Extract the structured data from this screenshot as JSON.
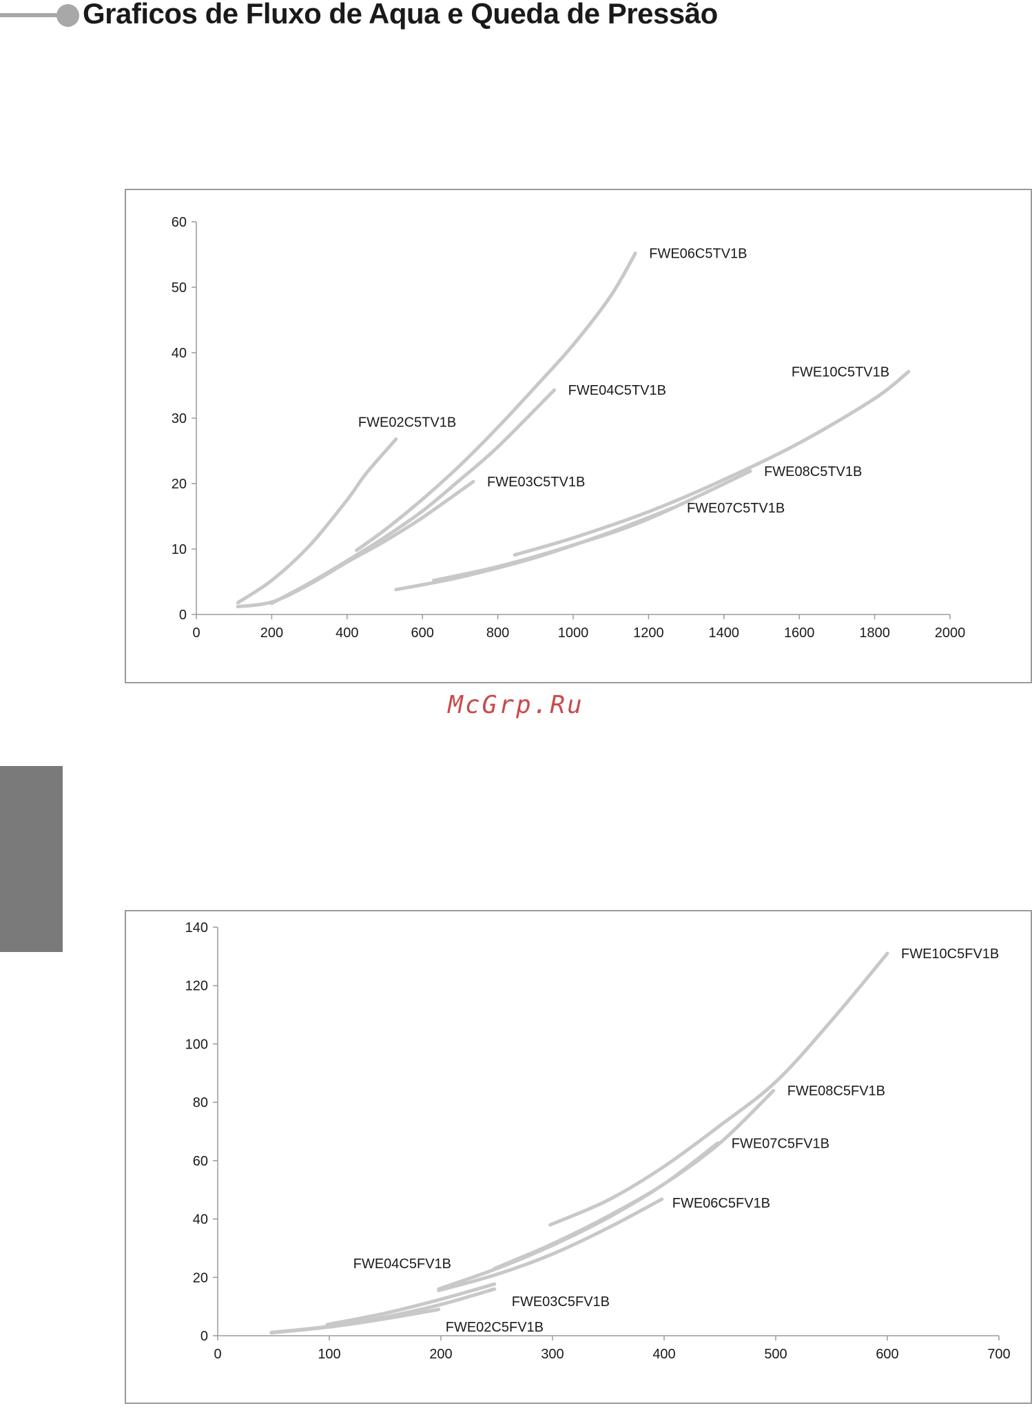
{
  "page": {
    "title": "Graficos de Fluxo de Aqua e Queda de Pressão",
    "watermark": "McGrp.Ru",
    "colors": {
      "header_accent": "#a8a8a8",
      "side_tab": "#7b7a7a",
      "curve": "#c8c8c8",
      "axis": "#9a9a9a",
      "frame": "#9a9a9a",
      "watermark": "#c94a4a"
    }
  },
  "chart_data": [
    {
      "type": "line",
      "title": "",
      "xlabel": "",
      "ylabel": "",
      "xlim": [
        0,
        2000
      ],
      "ylim": [
        0,
        60
      ],
      "xticks": [
        "0",
        "200",
        "400",
        "600",
        "800",
        "1000",
        "1200",
        "1400",
        "1600",
        "1800",
        "2000"
      ],
      "yticks": [
        "0",
        "10",
        "20",
        "30",
        "40",
        "50",
        "60"
      ],
      "grid": false,
      "legend": "labels at curve ends",
      "series": [
        {
          "name": "FWE02C5TV1B",
          "x": [
            110,
            200,
            300,
            400,
            450,
            530
          ],
          "y": [
            1.8,
            5.2,
            10.5,
            17.5,
            21.5,
            26.8
          ]
        },
        {
          "name": "FWE03C5TV1B",
          "x": [
            110,
            200,
            300,
            400,
            500,
            600,
            735
          ],
          "y": [
            1.2,
            1.9,
            4.6,
            8.0,
            11.2,
            14.8,
            20.3
          ]
        },
        {
          "name": "FWE04C5TV1B",
          "x": [
            200,
            300,
            400,
            500,
            600,
            700,
            800,
            950
          ],
          "y": [
            1.7,
            4.8,
            8.2,
            11.8,
            15.8,
            20.6,
            25.6,
            34.3
          ]
        },
        {
          "name": "FWE06C5TV1B",
          "x": [
            425,
            500,
            600,
            700,
            800,
            900,
            1000,
            1100,
            1165
          ],
          "y": [
            9.8,
            12.9,
            17.6,
            22.8,
            28.6,
            34.8,
            41.2,
            48.7,
            55.2
          ]
        },
        {
          "name": "FWE07C5TV1B",
          "x": [
            530,
            700,
            900,
            1100,
            1265
          ],
          "y": [
            3.8,
            5.7,
            8.7,
            12.6,
            16.3
          ]
        },
        {
          "name": "FWE08C5TV1B",
          "x": [
            630,
            800,
            1000,
            1200,
            1470
          ],
          "y": [
            5.2,
            7.3,
            10.6,
            14.6,
            21.9
          ]
        },
        {
          "name": "FWE10C5TV1B",
          "x": [
            845,
            1000,
            1200,
            1400,
            1600,
            1800,
            1890
          ],
          "y": [
            9.1,
            11.7,
            15.7,
            20.6,
            26.2,
            33.0,
            37.1
          ]
        }
      ]
    },
    {
      "type": "line",
      "title": "",
      "xlabel": "",
      "ylabel": "",
      "xlim": [
        0,
        700
      ],
      "ylim": [
        0,
        140
      ],
      "xticks": [
        "0",
        "100",
        "200",
        "300",
        "400",
        "500",
        "600",
        "700"
      ],
      "yticks": [
        "0",
        "20",
        "40",
        "60",
        "80",
        "100",
        "120",
        "140"
      ],
      "grid": false,
      "legend": "labels at curve ends",
      "series": [
        {
          "name": "FWE02C5FV1B",
          "x": [
            48,
            100,
            150,
            198
          ],
          "y": [
            1.0,
            3.0,
            5.8,
            9.0
          ]
        },
        {
          "name": "FWE03C5FV1B",
          "x": [
            48,
            100,
            150,
            200,
            248
          ],
          "y": [
            1.1,
            3.2,
            6.4,
            10.7,
            16.0
          ]
        },
        {
          "name": "FWE04C5FV1B",
          "x": [
            98,
            150,
            200,
            248
          ],
          "y": [
            3.8,
            7.7,
            12.5,
            17.7
          ]
        },
        {
          "name": "FWE06C5FV1B",
          "x": [
            198,
            250,
            300,
            350,
            398
          ],
          "y": [
            15.5,
            21.0,
            28.0,
            37.0,
            46.8
          ]
        },
        {
          "name": "FWE07C5FV1B",
          "x": [
            198,
            250,
            300,
            350,
            400,
            448
          ],
          "y": [
            16.0,
            23.0,
            31.0,
            40.5,
            52.0,
            66.0
          ]
        },
        {
          "name": "FWE08C5FV1B",
          "x": [
            248,
            300,
            350,
            400,
            450,
            498
          ],
          "y": [
            23.0,
            31.5,
            41.0,
            52.0,
            66.0,
            84.0
          ]
        },
        {
          "name": "FWE10C5FV1B",
          "x": [
            298,
            350,
            400,
            450,
            500,
            550,
            600
          ],
          "y": [
            38.0,
            46.5,
            58.0,
            72.0,
            87.0,
            108.0,
            131.0
          ]
        }
      ]
    }
  ]
}
